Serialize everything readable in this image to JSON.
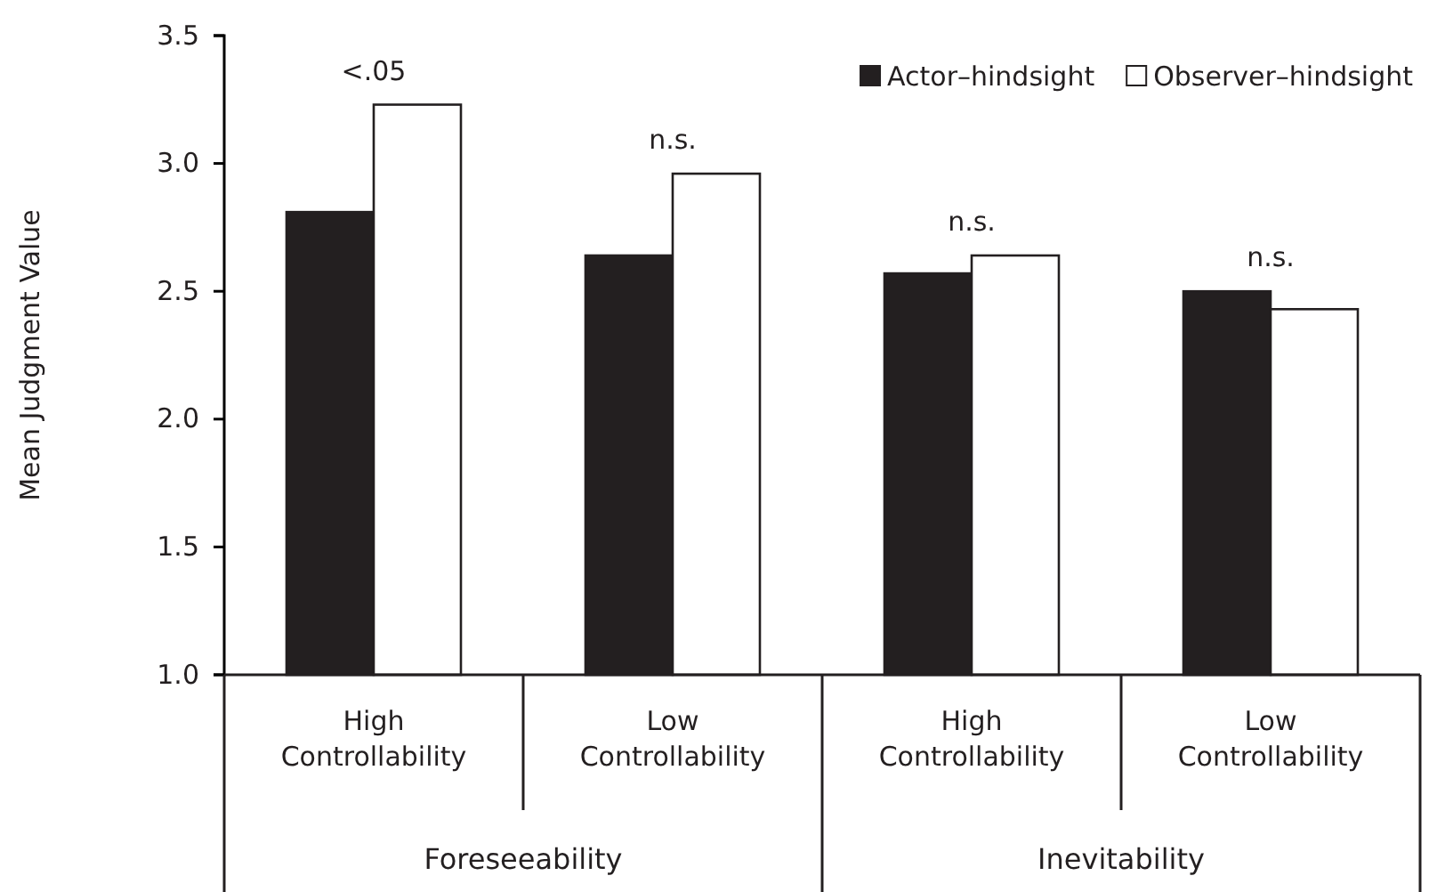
{
  "chart_data": {
    "type": "bar",
    "ylabel": "Mean Judgment Value",
    "categories": [
      "High Controllability",
      "Low Controllability",
      "High Controllability",
      "Low Controllability"
    ],
    "series": [
      {
        "name": "Actor–hindsight",
        "color": "#231f20",
        "values": [
          2.81,
          2.64,
          2.57,
          2.5
        ]
      },
      {
        "name": "Observer–hindsight",
        "color": "#ffffff",
        "values": [
          3.23,
          2.96,
          2.64,
          2.43
        ]
      }
    ],
    "ylim": [
      1,
      3.5
    ],
    "yticks": [
      {
        "value": 1,
        "label": "1.0"
      },
      {
        "value": 1.5,
        "label": "1.5"
      },
      {
        "value": 2,
        "label": "2.0"
      },
      {
        "value": 2.5,
        "label": "2.5"
      },
      {
        "value": 3,
        "label": "3.0"
      },
      {
        "value": 3.5,
        "label": "3.5"
      }
    ],
    "annotations": [
      "<.05",
      "n.s.",
      "n.s.",
      "n.s.",
      "Foreseeability",
      "Inevitability"
    ],
    "legend": "top right"
  }
}
